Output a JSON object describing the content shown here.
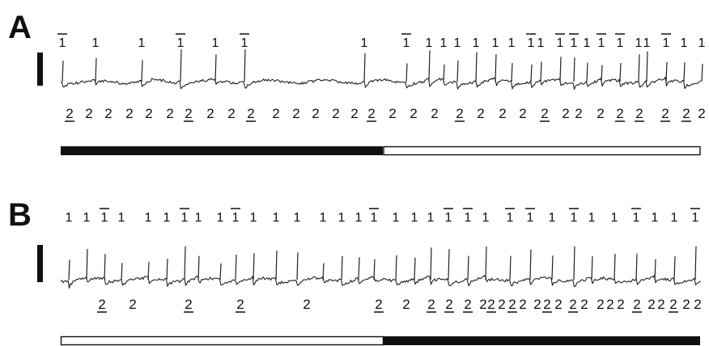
{
  "panels": [
    {
      "letter": "A",
      "bar": [
        "dark",
        "light"
      ],
      "top_labels": [
        {
          "t": "1",
          "x": 77,
          "u": true
        },
        {
          "t": "1",
          "x": 118,
          "u": false
        },
        {
          "t": "1",
          "x": 175,
          "u": false
        },
        {
          "t": "1",
          "x": 223,
          "u": true
        },
        {
          "t": "1",
          "x": 266,
          "u": false
        },
        {
          "t": "1",
          "x": 302,
          "u": true
        },
        {
          "t": "1",
          "x": 450,
          "u": false
        },
        {
          "t": "1",
          "x": 502,
          "u": true
        },
        {
          "t": "1",
          "x": 530,
          "u": false
        },
        {
          "t": "1",
          "x": 548,
          "u": false
        },
        {
          "t": "1",
          "x": 565,
          "u": false
        },
        {
          "t": "1",
          "x": 588,
          "u": false
        },
        {
          "t": "1",
          "x": 612,
          "u": false
        },
        {
          "t": "1",
          "x": 632,
          "u": false
        },
        {
          "t": "1",
          "x": 656,
          "u": true
        },
        {
          "t": "1",
          "x": 668,
          "u": false
        },
        {
          "t": "1",
          "x": 692,
          "u": true
        },
        {
          "t": "1",
          "x": 709,
          "u": true
        },
        {
          "t": "1",
          "x": 725,
          "u": false
        },
        {
          "t": "1",
          "x": 743,
          "u": true
        },
        {
          "t": "1",
          "x": 766,
          "u": true
        },
        {
          "t": "1",
          "x": 789,
          "u": false
        },
        {
          "t": "1",
          "x": 799,
          "u": false
        },
        {
          "t": "1",
          "x": 823,
          "u": true
        },
        {
          "t": "1",
          "x": 845,
          "u": false
        },
        {
          "t": "1",
          "x": 867,
          "u": false
        }
      ],
      "bottom_labels": [
        {
          "t": "2",
          "x": 86,
          "u": true
        },
        {
          "t": "2",
          "x": 110,
          "u": false
        },
        {
          "t": "2",
          "x": 134,
          "u": false
        },
        {
          "t": "2",
          "x": 160,
          "u": false
        },
        {
          "t": "2",
          "x": 184,
          "u": false
        },
        {
          "t": "2",
          "x": 210,
          "u": false
        },
        {
          "t": "2",
          "x": 233,
          "u": true
        },
        {
          "t": "2",
          "x": 260,
          "u": false
        },
        {
          "t": "2",
          "x": 286,
          "u": false
        },
        {
          "t": "2",
          "x": 310,
          "u": true
        },
        {
          "t": "2",
          "x": 341,
          "u": false
        },
        {
          "t": "2",
          "x": 366,
          "u": false
        },
        {
          "t": "2",
          "x": 390,
          "u": false
        },
        {
          "t": "2",
          "x": 415,
          "u": false
        },
        {
          "t": "2",
          "x": 438,
          "u": false
        },
        {
          "t": "2",
          "x": 459,
          "u": true
        },
        {
          "t": "2",
          "x": 485,
          "u": false
        },
        {
          "t": "2",
          "x": 511,
          "u": false
        },
        {
          "t": "2",
          "x": 537,
          "u": false
        },
        {
          "t": "2",
          "x": 568,
          "u": true
        },
        {
          "t": "2",
          "x": 594,
          "u": false
        },
        {
          "t": "2",
          "x": 621,
          "u": false
        },
        {
          "t": "2",
          "x": 646,
          "u": false
        },
        {
          "t": "2",
          "x": 673,
          "u": true
        },
        {
          "t": "2",
          "x": 699,
          "u": false
        },
        {
          "t": "2",
          "x": 715,
          "u": false
        },
        {
          "t": "2",
          "x": 742,
          "u": false
        },
        {
          "t": "2",
          "x": 766,
          "u": true
        },
        {
          "t": "2",
          "x": 790,
          "u": true
        },
        {
          "t": "2",
          "x": 822,
          "u": true
        },
        {
          "t": "2",
          "x": 848,
          "u": true
        },
        {
          "t": "2",
          "x": 867,
          "u": false
        }
      ]
    },
    {
      "letter": "B",
      "bar": [
        "light",
        "dark"
      ],
      "top_labels": [
        {
          "t": "1",
          "x": 85,
          "u": false
        },
        {
          "t": "1",
          "x": 107,
          "u": false
        },
        {
          "t": "1",
          "x": 129,
          "u": true
        },
        {
          "t": "1",
          "x": 150,
          "u": false
        },
        {
          "t": "1",
          "x": 183,
          "u": false
        },
        {
          "t": "1",
          "x": 206,
          "u": false
        },
        {
          "t": "1",
          "x": 228,
          "u": true
        },
        {
          "t": "1",
          "x": 245,
          "u": false
        },
        {
          "t": "1",
          "x": 272,
          "u": false
        },
        {
          "t": "1",
          "x": 291,
          "u": true
        },
        {
          "t": "1",
          "x": 313,
          "u": false
        },
        {
          "t": "1",
          "x": 341,
          "u": false
        },
        {
          "t": "1",
          "x": 367,
          "u": false
        },
        {
          "t": "1",
          "x": 399,
          "u": false
        },
        {
          "t": "1",
          "x": 422,
          "u": false
        },
        {
          "t": "1",
          "x": 443,
          "u": false
        },
        {
          "t": "1",
          "x": 462,
          "u": true
        },
        {
          "t": "1",
          "x": 489,
          "u": false
        },
        {
          "t": "1",
          "x": 512,
          "u": false
        },
        {
          "t": "1",
          "x": 532,
          "u": false
        },
        {
          "t": "1",
          "x": 554,
          "u": true
        },
        {
          "t": "1",
          "x": 578,
          "u": true
        },
        {
          "t": "1",
          "x": 600,
          "u": false
        },
        {
          "t": "1",
          "x": 630,
          "u": true
        },
        {
          "t": "1",
          "x": 655,
          "u": true
        },
        {
          "t": "1",
          "x": 682,
          "u": false
        },
        {
          "t": "1",
          "x": 709,
          "u": true
        },
        {
          "t": "1",
          "x": 731,
          "u": false
        },
        {
          "t": "1",
          "x": 759,
          "u": false
        },
        {
          "t": "1",
          "x": 786,
          "u": true
        },
        {
          "t": "1",
          "x": 809,
          "u": false
        },
        {
          "t": "1",
          "x": 833,
          "u": false
        },
        {
          "t": "1",
          "x": 859,
          "u": true
        }
      ],
      "bottom_labels": [
        {
          "t": "2",
          "x": 126,
          "u": true
        },
        {
          "t": "2",
          "x": 164,
          "u": false
        },
        {
          "t": "2",
          "x": 233,
          "u": true
        },
        {
          "t": "2",
          "x": 297,
          "u": true
        },
        {
          "t": "2",
          "x": 379,
          "u": false
        },
        {
          "t": "2",
          "x": 468,
          "u": true
        },
        {
          "t": "2",
          "x": 502,
          "u": false
        },
        {
          "t": "2",
          "x": 533,
          "u": true
        },
        {
          "t": "2",
          "x": 555,
          "u": true
        },
        {
          "t": "2",
          "x": 578,
          "u": true
        },
        {
          "t": "2",
          "x": 597,
          "u": false
        },
        {
          "t": "2",
          "x": 607,
          "u": true
        },
        {
          "t": "2",
          "x": 620,
          "u": false
        },
        {
          "t": "2",
          "x": 633,
          "u": true
        },
        {
          "t": "2",
          "x": 646,
          "u": false
        },
        {
          "t": "2",
          "x": 664,
          "u": false
        },
        {
          "t": "2",
          "x": 676,
          "u": true
        },
        {
          "t": "2",
          "x": 690,
          "u": false
        },
        {
          "t": "2",
          "x": 708,
          "u": true
        },
        {
          "t": "2",
          "x": 722,
          "u": false
        },
        {
          "t": "2",
          "x": 742,
          "u": false
        },
        {
          "t": "2",
          "x": 754,
          "u": false
        },
        {
          "t": "2",
          "x": 767,
          "u": false
        },
        {
          "t": "2",
          "x": 787,
          "u": true
        },
        {
          "t": "2",
          "x": 805,
          "u": false
        },
        {
          "t": "2",
          "x": 817,
          "u": false
        },
        {
          "t": "2",
          "x": 832,
          "u": true
        },
        {
          "t": "2",
          "x": 848,
          "u": false
        },
        {
          "t": "2",
          "x": 862,
          "u": false
        }
      ]
    }
  ]
}
